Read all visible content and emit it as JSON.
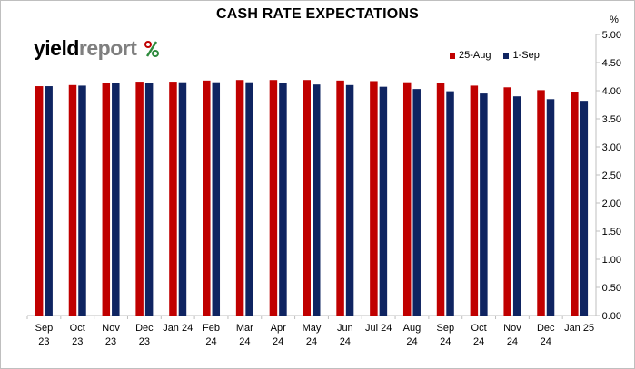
{
  "chart_data": {
    "type": "bar",
    "title": "CASH RATE EXPECTATIONS",
    "ylabel": "%",
    "ylim": [
      0,
      5
    ],
    "ytick_labels": [
      "0.00",
      "0.50",
      "1.00",
      "1.50",
      "2.00",
      "2.50",
      "3.00",
      "3.50",
      "4.00",
      "4.50",
      "5.00"
    ],
    "categories": [
      [
        "Sep",
        "23"
      ],
      [
        "Oct",
        "23"
      ],
      [
        "Nov",
        "23"
      ],
      [
        "Dec",
        "23"
      ],
      [
        "Jan 24",
        ""
      ],
      [
        "Feb",
        "24"
      ],
      [
        "Mar",
        "24"
      ],
      [
        "Apr",
        "24"
      ],
      [
        "May",
        "24"
      ],
      [
        "Jun",
        "24"
      ],
      [
        "Jul 24",
        ""
      ],
      [
        "Aug",
        "24"
      ],
      [
        "Sep",
        "24"
      ],
      [
        "Oct",
        "24"
      ],
      [
        "Nov",
        "24"
      ],
      [
        "Dec",
        "24"
      ],
      [
        "Jan 25",
        ""
      ]
    ],
    "series": [
      {
        "name": "25-Aug",
        "color": "#c00000",
        "values": [
          4.08,
          4.1,
          4.13,
          4.16,
          4.16,
          4.18,
          4.19,
          4.19,
          4.19,
          4.18,
          4.17,
          4.15,
          4.13,
          4.09,
          4.06,
          4.01,
          3.98
        ]
      },
      {
        "name": "1-Sep",
        "color": "#0f2461",
        "values": [
          4.08,
          4.09,
          4.13,
          4.14,
          4.15,
          4.15,
          4.15,
          4.13,
          4.11,
          4.1,
          4.07,
          4.03,
          3.99,
          3.95,
          3.9,
          3.85,
          3.82
        ]
      }
    ],
    "legend_position": "top-right",
    "grid": false
  },
  "logo": {
    "part1": "yield",
    "part2": "report",
    "pct": "%"
  }
}
